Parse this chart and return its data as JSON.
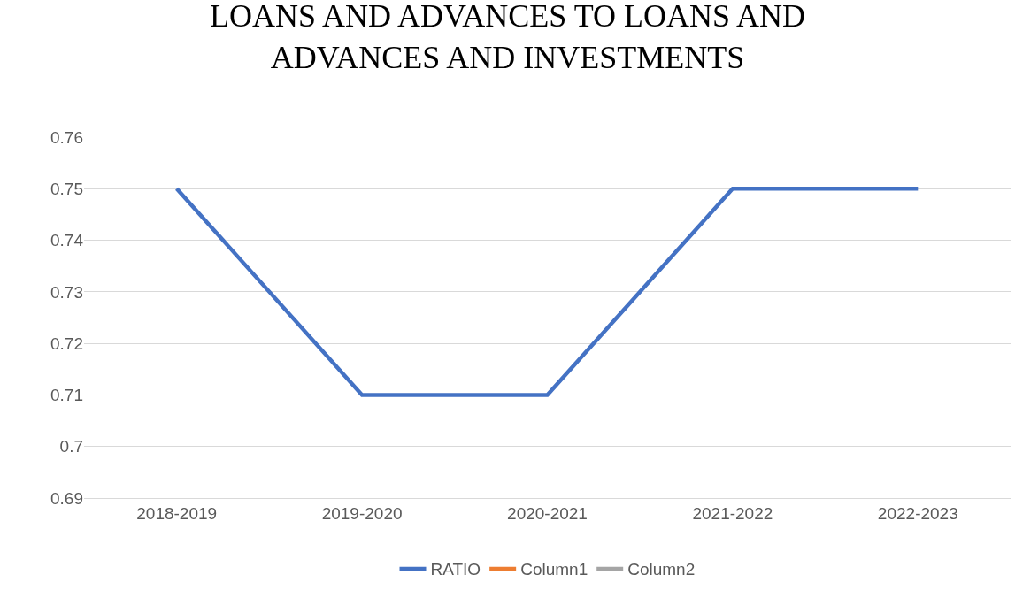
{
  "chart_data": {
    "type": "line",
    "title": "LOANS AND ADVANCES TO LOANS AND\nADVANCES AND INVESTMENTS",
    "categories": [
      "2018-2019",
      "2019-2020",
      "2020-2021",
      "2021-2022",
      "2022-2023"
    ],
    "series": [
      {
        "name": "RATIO",
        "color": "#4472c4",
        "values": [
          0.75,
          0.71,
          0.71,
          0.75,
          0.75
        ]
      },
      {
        "name": "Column1",
        "color": "#ed7d31",
        "values": [
          null,
          null,
          null,
          null,
          null
        ]
      },
      {
        "name": "Column2",
        "color": "#a5a5a5",
        "values": [
          null,
          null,
          null,
          null,
          null
        ]
      }
    ],
    "ylim": [
      0.69,
      0.76
    ],
    "yticks": [
      0.69,
      {
        "value": 0.7,
        "label": "0.7"
      },
      0.71,
      0.72,
      0.73,
      0.74,
      0.75,
      0.76
    ],
    "grid": "y",
    "legend": "bottom",
    "marker": "none",
    "line_style": "solid"
  }
}
